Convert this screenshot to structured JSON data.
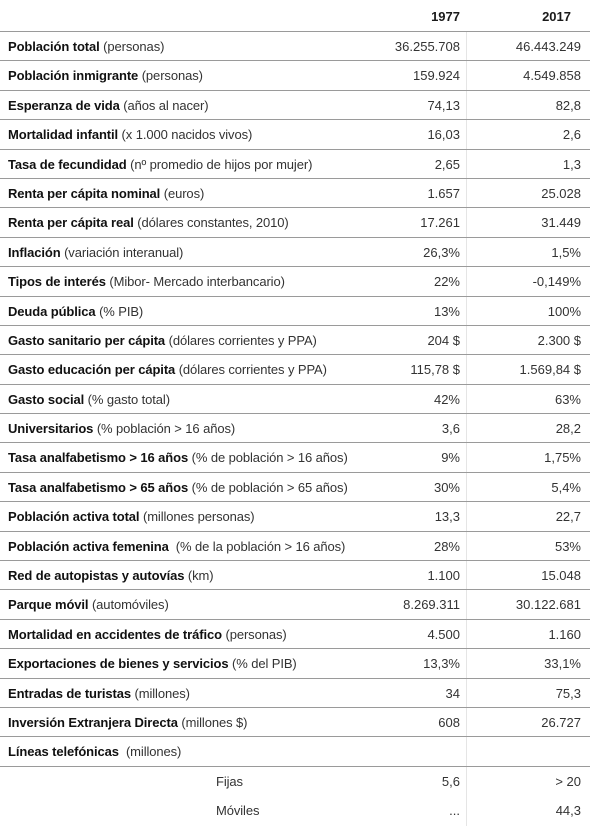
{
  "header": {
    "year_a": "1977",
    "year_b": "2017"
  },
  "rows": [
    {
      "label": "Población total",
      "unit": " (personas)",
      "v1977": "36.255.708",
      "v2017": "46.443.249"
    },
    {
      "label": "Población inmigrante",
      "unit": " (personas)",
      "v1977": "159.924",
      "v2017": "4.549.858"
    },
    {
      "label": "Esperanza de vida",
      "unit": " (años al nacer)",
      "v1977": "74,13",
      "v2017": "82,8"
    },
    {
      "label": "Mortalidad infantil",
      "unit": " (x 1.000 nacidos vivos)",
      "v1977": "16,03",
      "v2017": "2,6"
    },
    {
      "label": "Tasa de fecundidad",
      "unit": " (nº promedio de hijos por mujer)",
      "v1977": "2,65",
      "v2017": "1,3"
    },
    {
      "label": "Renta per cápita nominal",
      "unit": " (euros)",
      "v1977": "1.657",
      "v2017": "25.028"
    },
    {
      "label": "Renta per cápita real",
      "unit": " (dólares constantes, 2010)",
      "v1977": "17.261",
      "v2017": "31.449"
    },
    {
      "label": "Inflación",
      "unit": " (variación interanual)",
      "v1977": "26,3%",
      "v2017": "1,5%"
    },
    {
      "label": "Tipos de interés",
      "unit": " (Mibor- Mercado interbancario)",
      "v1977": "22%",
      "v2017": "-0,149%"
    },
    {
      "label": "Deuda pública",
      "unit": " (% PIB)",
      "v1977": "13%",
      "v2017": "100%"
    },
    {
      "label": "Gasto sanitario per cápita",
      "unit": " (dólares corrientes y PPA)",
      "v1977": "204 $",
      "v2017": "2.300 $"
    },
    {
      "label": "Gasto educación per cápita",
      "unit": " (dólares corrientes y PPA)",
      "v1977": "115,78 $",
      "v2017": "1.569,84 $"
    },
    {
      "label": "Gasto social",
      "unit": " (% gasto total)",
      "v1977": "42%",
      "v2017": "63%"
    },
    {
      "label": "Universitarios",
      "unit": " (% población > 16 años)",
      "v1977": "3,6",
      "v2017": "28,2"
    },
    {
      "label": "Tasa analfabetismo > 16 años",
      "unit": " (% de población > 16 años)",
      "v1977": "9%",
      "v2017": "1,75%"
    },
    {
      "label": "Tasa analfabetismo > 65 años",
      "unit": " (% de población > 65 años)",
      "v1977": "30%",
      "v2017": "5,4%"
    },
    {
      "label": "Población activa total",
      "unit": " (millones personas)",
      "v1977": "13,3",
      "v2017": "22,7"
    },
    {
      "label": "Población activa femenina",
      "unit": "  (% de la población > 16 años)",
      "v1977": "28%",
      "v2017": "53%"
    },
    {
      "label": "Red de autopistas y autovías",
      "unit": " (km)",
      "v1977": "1.100",
      "v2017": "15.048"
    },
    {
      "label": "Parque móvil",
      "unit": " (automóviles)",
      "v1977": "8.269.311",
      "v2017": "30.122.681"
    },
    {
      "label": "Mortalidad en accidentes de tráfico",
      "unit": " (personas)",
      "v1977": "4.500",
      "v2017": "1.160"
    },
    {
      "label": "Exportaciones de bienes y servicios",
      "unit": " (% del PIB)",
      "v1977": "13,3%",
      "v2017": "33,1%"
    },
    {
      "label": "Entradas de turistas",
      "unit": " (millones)",
      "v1977": "34",
      "v2017": "75,3"
    },
    {
      "label": "Inversión Extranjera Directa",
      "unit": " (millones $)",
      "v1977": "608",
      "v2017": "26.727"
    },
    {
      "label": "Líneas telefónicas",
      "unit": "  (millones)",
      "v1977": "",
      "v2017": ""
    }
  ],
  "subrows": [
    {
      "label": "Fijas",
      "v1977": "5,6",
      "v2017": "> 20"
    },
    {
      "label": "Móviles",
      "v1977": "...",
      "v2017": "44,3"
    }
  ]
}
